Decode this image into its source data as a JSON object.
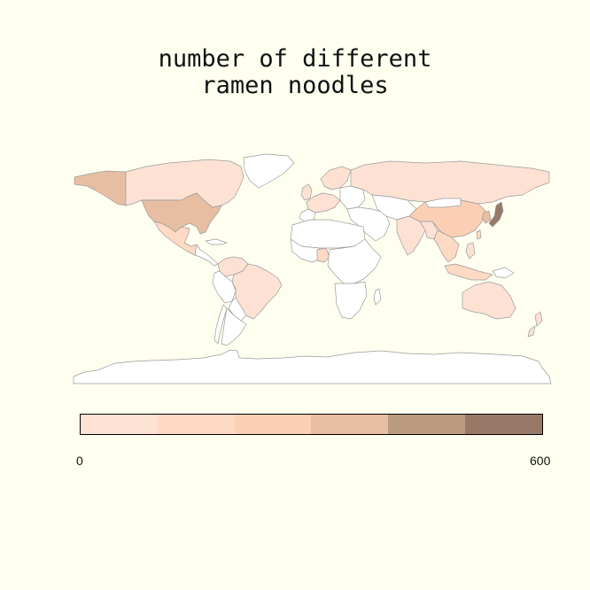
{
  "title": {
    "line1": "number of different",
    "line2": "ramen noodles"
  },
  "legend": {
    "min_label": "0",
    "max_label": "600",
    "colors": [
      "#fde2d4",
      "#fed9c3",
      "#fccfb5",
      "#e8bea3",
      "#bb9b80",
      "#967a67"
    ]
  },
  "colors": {
    "background": "#fffff0",
    "no_data": "#ffffff",
    "border": "#9a9a9a"
  }
}
